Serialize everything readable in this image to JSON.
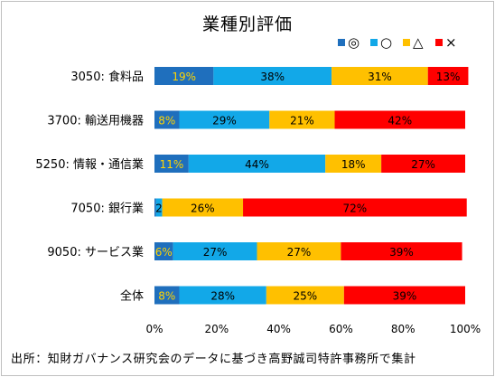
{
  "chart_data": {
    "type": "bar",
    "orientation": "horizontal",
    "stacked": "percent",
    "title": "業種別評価",
    "source_note": "出所：知財ガバナンス研究会のデータに基づき高野誠司特許事務所で集計",
    "categories": [
      "3050: 食料品",
      "3700: 輸送用機器",
      "5250: 情報・通信業",
      "7050: 銀行業",
      "9050: サービス業",
      "全体"
    ],
    "series": [
      {
        "name": "◎",
        "color": "#1f6fbd",
        "label_color": "#ffd400",
        "values": [
          19,
          8,
          11,
          0.5,
          6,
          8
        ],
        "labels": [
          "19%",
          "8%",
          "11%",
          "",
          "6%",
          "8%"
        ]
      },
      {
        "name": "○",
        "color": "#12a8e8",
        "label_color": "#000000",
        "values": [
          38,
          29,
          44,
          2,
          27,
          28
        ],
        "labels": [
          "38%",
          "29%",
          "44%",
          "2%",
          "27%",
          "28%"
        ]
      },
      {
        "name": "△",
        "color": "#ffc000",
        "label_color": "#000000",
        "values": [
          31,
          21,
          18,
          26,
          27,
          25
        ],
        "labels": [
          "31%",
          "21%",
          "18%",
          "26%",
          "27%",
          "25%"
        ]
      },
      {
        "name": "×",
        "color": "#ff0000",
        "label_color": "#000000",
        "values": [
          13,
          42,
          27,
          72,
          39,
          39
        ],
        "labels": [
          "13%",
          "42%",
          "27%",
          "72%",
          "39%",
          "39%"
        ]
      }
    ],
    "xlim": [
      0,
      100
    ],
    "xticks": [
      "0%",
      "20%",
      "40%",
      "60%",
      "80%",
      "100%"
    ],
    "legend_position": "top-right",
    "grid": false
  }
}
